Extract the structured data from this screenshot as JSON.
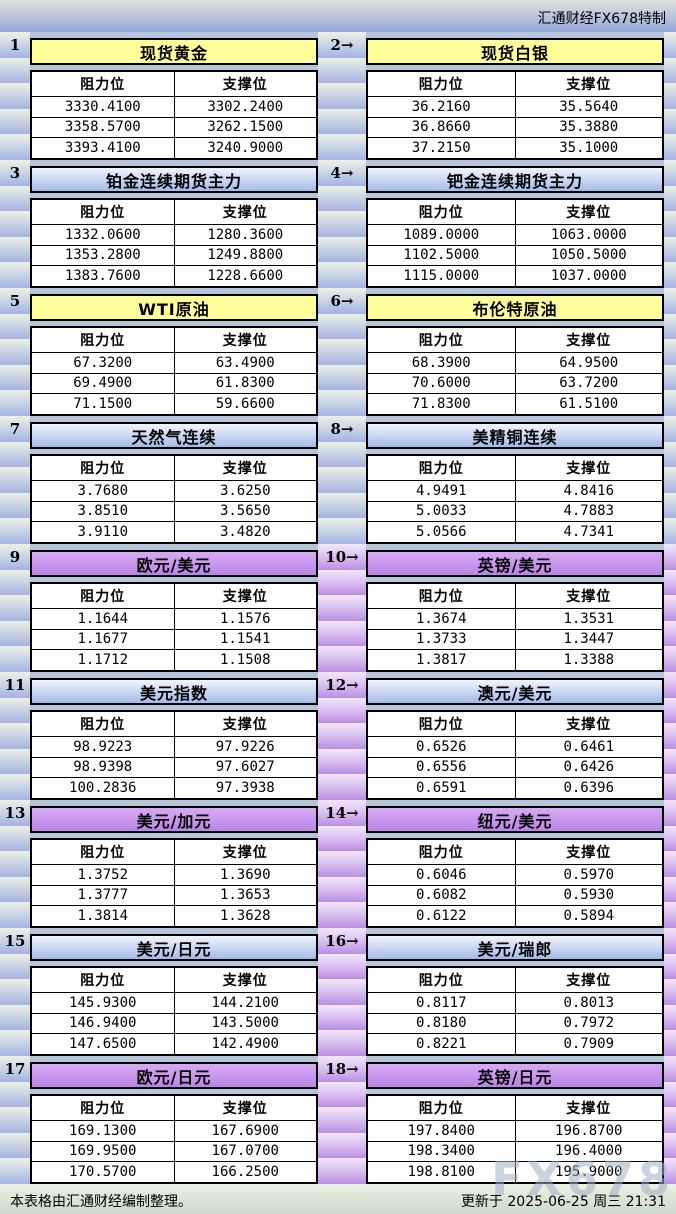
{
  "banner": {
    "brand": "汇通财经FX678特制"
  },
  "labels": {
    "resistance": "阻力位",
    "support": "支撑位"
  },
  "footer": {
    "source_note": "本表格由汇通财经编制整理。",
    "updated": "更新于 2025-06-25 周三 21:31",
    "watermark": "FX678"
  },
  "colors": {
    "page_bg": "#b7c5da",
    "title_yellow": "#ffff9b",
    "title_blue": "#a3b9e8",
    "title_purple": "#c794ec",
    "strip_blue": "#a5b2e4",
    "strip_purple": "#bb8fe5",
    "footer_green": "#c8d6c9"
  },
  "sections": [
    {
      "strip": "blue",
      "left": {
        "num": "1",
        "title": "现货黄金",
        "theme": "yellow",
        "rows": [
          [
            "3330.4100",
            "3302.2400"
          ],
          [
            "3358.5700",
            "3262.1500"
          ],
          [
            "3393.4100",
            "3240.9000"
          ]
        ]
      },
      "right": {
        "num": "2→",
        "title": "现货白银",
        "theme": "yellow",
        "rows": [
          [
            "36.2160",
            "35.5640"
          ],
          [
            "36.8660",
            "35.3880"
          ],
          [
            "37.2150",
            "35.1000"
          ]
        ]
      }
    },
    {
      "strip": "blue",
      "left": {
        "num": "3",
        "title": "铂金连续期货主力",
        "theme": "blue",
        "rows": [
          [
            "1332.0600",
            "1280.3600"
          ],
          [
            "1353.2800",
            "1249.8800"
          ],
          [
            "1383.7600",
            "1228.6600"
          ]
        ]
      },
      "right": {
        "num": "4→",
        "title": "钯金连续期货主力",
        "theme": "blue",
        "rows": [
          [
            "1089.0000",
            "1063.0000"
          ],
          [
            "1102.5000",
            "1050.5000"
          ],
          [
            "1115.0000",
            "1037.0000"
          ]
        ]
      }
    },
    {
      "strip": "blue",
      "left": {
        "num": "5",
        "title": "WTI原油",
        "theme": "yellow",
        "rows": [
          [
            "67.3200",
            "63.4900"
          ],
          [
            "69.4900",
            "61.8300"
          ],
          [
            "71.1500",
            "59.6600"
          ]
        ]
      },
      "right": {
        "num": "6→",
        "title": "布伦特原油",
        "theme": "yellow",
        "rows": [
          [
            "68.3900",
            "64.9500"
          ],
          [
            "70.6000",
            "63.7200"
          ],
          [
            "71.8300",
            "61.5100"
          ]
        ]
      }
    },
    {
      "strip": "blue",
      "left": {
        "num": "7",
        "title": "天然气连续",
        "theme": "blue",
        "rows": [
          [
            "3.7680",
            "3.6250"
          ],
          [
            "3.8510",
            "3.5650"
          ],
          [
            "3.9110",
            "3.4820"
          ]
        ]
      },
      "right": {
        "num": "8→",
        "title": "美精铜连续",
        "theme": "blue",
        "rows": [
          [
            "4.9491",
            "4.8416"
          ],
          [
            "5.0033",
            "4.7883"
          ],
          [
            "5.0566",
            "4.7341"
          ]
        ]
      }
    },
    {
      "strip": "purple",
      "left": {
        "num": "9",
        "title": "欧元/美元",
        "theme": "purple",
        "rows": [
          [
            "1.1644",
            "1.1576"
          ],
          [
            "1.1677",
            "1.1541"
          ],
          [
            "1.1712",
            "1.1508"
          ]
        ]
      },
      "right": {
        "num": "10→",
        "title": "英镑/美元",
        "theme": "purple",
        "rows": [
          [
            "1.3674",
            "1.3531"
          ],
          [
            "1.3733",
            "1.3447"
          ],
          [
            "1.3817",
            "1.3388"
          ]
        ]
      }
    },
    {
      "strip": "purple",
      "left": {
        "num": "11",
        "title": "美元指数",
        "theme": "blue",
        "rows": [
          [
            "98.9223",
            "97.9226"
          ],
          [
            "98.9398",
            "97.6027"
          ],
          [
            "100.2836",
            "97.3938"
          ]
        ]
      },
      "right": {
        "num": "12→",
        "title": "澳元/美元",
        "theme": "blue",
        "rows": [
          [
            "0.6526",
            "0.6461"
          ],
          [
            "0.6556",
            "0.6426"
          ],
          [
            "0.6591",
            "0.6396"
          ]
        ]
      }
    },
    {
      "strip": "purple",
      "left": {
        "num": "13",
        "title": "美元/加元",
        "theme": "purple",
        "rows": [
          [
            "1.3752",
            "1.3690"
          ],
          [
            "1.3777",
            "1.3653"
          ],
          [
            "1.3814",
            "1.3628"
          ]
        ]
      },
      "right": {
        "num": "14→",
        "title": "纽元/美元",
        "theme": "purple",
        "rows": [
          [
            "0.6046",
            "0.5970"
          ],
          [
            "0.6082",
            "0.5930"
          ],
          [
            "0.6122",
            "0.5894"
          ]
        ]
      }
    },
    {
      "strip": "purple",
      "left": {
        "num": "15",
        "title": "美元/日元",
        "theme": "blue",
        "rows": [
          [
            "145.9300",
            "144.2100"
          ],
          [
            "146.9400",
            "143.5000"
          ],
          [
            "147.6500",
            "142.4900"
          ]
        ]
      },
      "right": {
        "num": "16→",
        "title": "美元/瑞郎",
        "theme": "blue",
        "rows": [
          [
            "0.8117",
            "0.8013"
          ],
          [
            "0.8180",
            "0.7972"
          ],
          [
            "0.8221",
            "0.7909"
          ]
        ]
      }
    },
    {
      "strip": "purple",
      "left": {
        "num": "17",
        "title": "欧元/日元",
        "theme": "purple",
        "rows": [
          [
            "169.1300",
            "167.6900"
          ],
          [
            "169.9500",
            "167.0700"
          ],
          [
            "170.5700",
            "166.2500"
          ]
        ]
      },
      "right": {
        "num": "18→",
        "title": "英镑/日元",
        "theme": "purple",
        "rows": [
          [
            "197.8400",
            "196.8700"
          ],
          [
            "198.3400",
            "196.4000"
          ],
          [
            "198.8100",
            "195.9000"
          ]
        ]
      }
    }
  ],
  "chart_data": {
    "type": "table",
    "columns": [
      "阻力位",
      "支撑位"
    ],
    "instruments": [
      {
        "name": "现货黄金",
        "resistance": [
          3330.41,
          3358.57,
          3393.41
        ],
        "support": [
          3302.24,
          3262.15,
          3240.9
        ]
      },
      {
        "name": "现货白银",
        "resistance": [
          36.216,
          36.866,
          37.215
        ],
        "support": [
          35.564,
          35.388,
          35.1
        ]
      },
      {
        "name": "铂金连续期货主力",
        "resistance": [
          1332.06,
          1353.28,
          1383.76
        ],
        "support": [
          1280.36,
          1249.88,
          1228.66
        ]
      },
      {
        "name": "钯金连续期货主力",
        "resistance": [
          1089.0,
          1102.5,
          1115.0
        ],
        "support": [
          1063.0,
          1050.5,
          1037.0
        ]
      },
      {
        "name": "WTI原油",
        "resistance": [
          67.32,
          69.49,
          71.15
        ],
        "support": [
          63.49,
          61.83,
          59.66
        ]
      },
      {
        "name": "布伦特原油",
        "resistance": [
          68.39,
          70.6,
          71.83
        ],
        "support": [
          64.95,
          63.72,
          61.51
        ]
      },
      {
        "name": "天然气连续",
        "resistance": [
          3.768,
          3.851,
          3.911
        ],
        "support": [
          3.625,
          3.565,
          3.482
        ]
      },
      {
        "name": "美精铜连续",
        "resistance": [
          4.9491,
          5.0033,
          5.0566
        ],
        "support": [
          4.8416,
          4.7883,
          4.7341
        ]
      },
      {
        "name": "欧元/美元",
        "resistance": [
          1.1644,
          1.1677,
          1.1712
        ],
        "support": [
          1.1576,
          1.1541,
          1.1508
        ]
      },
      {
        "name": "英镑/美元",
        "resistance": [
          1.3674,
          1.3733,
          1.3817
        ],
        "support": [
          1.3531,
          1.3447,
          1.3388
        ]
      },
      {
        "name": "美元指数",
        "resistance": [
          98.9223,
          98.9398,
          100.2836
        ],
        "support": [
          97.9226,
          97.6027,
          97.3938
        ]
      },
      {
        "name": "澳元/美元",
        "resistance": [
          0.6526,
          0.6556,
          0.6591
        ],
        "support": [
          0.6461,
          0.6426,
          0.6396
        ]
      },
      {
        "name": "美元/加元",
        "resistance": [
          1.3752,
          1.3777,
          1.3814
        ],
        "support": [
          1.369,
          1.3653,
          1.3628
        ]
      },
      {
        "name": "纽元/美元",
        "resistance": [
          0.6046,
          0.6082,
          0.6122
        ],
        "support": [
          0.597,
          0.593,
          0.5894
        ]
      },
      {
        "name": "美元/日元",
        "resistance": [
          145.93,
          146.94,
          147.65
        ],
        "support": [
          144.21,
          143.5,
          142.49
        ]
      },
      {
        "name": "美元/瑞郎",
        "resistance": [
          0.8117,
          0.818,
          0.8221
        ],
        "support": [
          0.8013,
          0.7972,
          0.7909
        ]
      },
      {
        "name": "欧元/日元",
        "resistance": [
          169.13,
          169.95,
          170.57
        ],
        "support": [
          167.69,
          167.07,
          166.25
        ]
      },
      {
        "name": "英镑/日元",
        "resistance": [
          197.84,
          198.34,
          198.81
        ],
        "support": [
          196.87,
          196.4,
          195.9
        ]
      }
    ]
  }
}
